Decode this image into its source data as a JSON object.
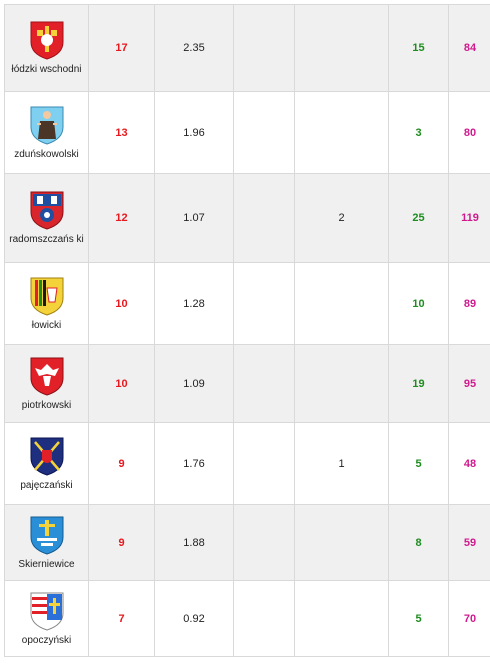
{
  "rows": [
    {
      "county": "łódzki wschodni",
      "a": "17",
      "b": "2.35",
      "c": "",
      "d": "",
      "e": "15",
      "f": "84",
      "crest": "crest-lodzki-wschodni-icon"
    },
    {
      "county": "zduńskowolski",
      "a": "13",
      "b": "1.96",
      "c": "",
      "d": "",
      "e": "3",
      "f": "80",
      "crest": "crest-zdunskowolski-icon"
    },
    {
      "county": "radomszczańs ki",
      "a": "12",
      "b": "1.07",
      "c": "",
      "d": "2",
      "e": "25",
      "f": "119",
      "crest": "crest-radomszczanski-icon"
    },
    {
      "county": "łowicki",
      "a": "10",
      "b": "1.28",
      "c": "",
      "d": "",
      "e": "10",
      "f": "89",
      "crest": "crest-lowicki-icon"
    },
    {
      "county": "piotrkowski",
      "a": "10",
      "b": "1.09",
      "c": "",
      "d": "",
      "e": "19",
      "f": "95",
      "crest": "crest-piotrkowski-icon"
    },
    {
      "county": "pajęczański",
      "a": "9",
      "b": "1.76",
      "c": "",
      "d": "1",
      "e": "5",
      "f": "48",
      "crest": "crest-pajeczanski-icon"
    },
    {
      "county": "Skierniewice",
      "a": "9",
      "b": "1.88",
      "c": "",
      "d": "",
      "e": "8",
      "f": "59",
      "crest": "crest-skierniewice-icon"
    },
    {
      "county": "opoczyński",
      "a": "7",
      "b": "0.92",
      "c": "",
      "d": "",
      "e": "5",
      "f": "70",
      "crest": "crest-opoczynski-icon"
    }
  ],
  "colors": {
    "count": "#e8181e",
    "positive": "#1f8c1f",
    "total": "#cf1a8e",
    "row_alt": "#f0f0f0"
  }
}
